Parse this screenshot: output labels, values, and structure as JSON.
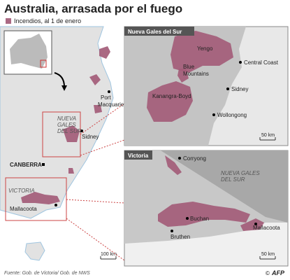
{
  "header": {
    "title": "Australia, arrasada por el fuego",
    "legend": "Incendios, al 1 de enero"
  },
  "main_map": {
    "labels": [
      [
        "Port",
        "Macquarie"
      ],
      [
        "NUEVA",
        "GALES",
        "DEL SUR"
      ],
      [
        "Sidney"
      ],
      [
        "CANBERRA"
      ],
      [
        "VICTORIA"
      ],
      [
        "Mallacoota"
      ]
    ],
    "scale": "100 km"
  },
  "nsw_inset": {
    "title": "Nueva Gales del Sur",
    "labels": [
      [
        "Yengo"
      ],
      [
        "Blue",
        "Mountains"
      ],
      [
        "Kanangra-Boyd"
      ],
      [
        "Central Coast"
      ],
      [
        "Sidney"
      ],
      [
        "Wollongong"
      ]
    ],
    "scale": "50 km"
  },
  "vic_inset": {
    "title": "Victoria",
    "labels": [
      [
        "Corryong"
      ],
      [
        "NUEVA GALES",
        "DEL SUR"
      ],
      [
        "Buchan"
      ],
      [
        "Bruthen"
      ],
      [
        "Mallacoota"
      ]
    ],
    "scale": "50 km"
  },
  "footer": {
    "source": "Fuente: Gob. de Victoria/ Gob. de NWS",
    "copyright": "©",
    "credit": "AFP"
  }
}
